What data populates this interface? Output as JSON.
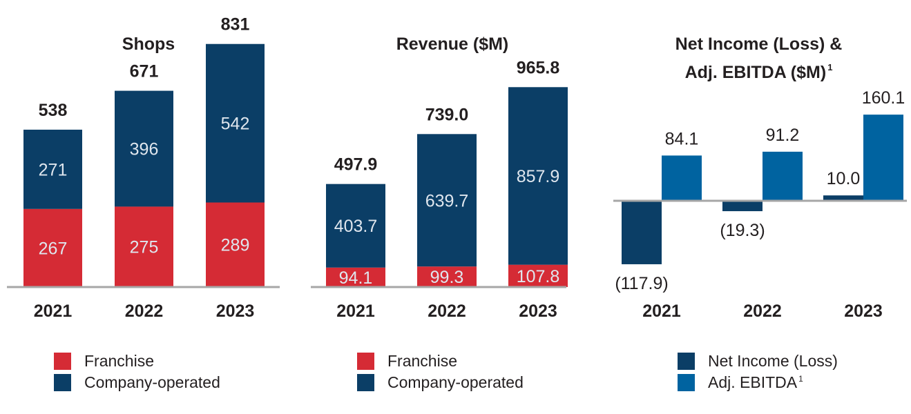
{
  "colors": {
    "franchise": "#d52b35",
    "company_operated": "#0b3e66",
    "net_income": "#0b3e66",
    "adj_ebitda": "#0063a0",
    "axis": "#a6a6a6",
    "text": "#231f20"
  },
  "chart_data": [
    {
      "type": "bar",
      "stacked": true,
      "title": "Shops",
      "categories": [
        "2021",
        "2022",
        "2023"
      ],
      "series": [
        {
          "name": "Franchise",
          "values": [
            267,
            275,
            289
          ],
          "labels": [
            "267",
            "275",
            "289"
          ]
        },
        {
          "name": "Company-operated",
          "values": [
            271,
            396,
            542
          ],
          "labels": [
            "271",
            "396",
            "542"
          ]
        }
      ],
      "totals": [
        "538",
        "671",
        "831"
      ],
      "ylim": [
        0,
        920
      ],
      "legend": "bottom"
    },
    {
      "type": "bar",
      "stacked": true,
      "title": "Revenue ($M)",
      "categories": [
        "2021",
        "2022",
        "2023"
      ],
      "series": [
        {
          "name": "Franchise",
          "values": [
            94.1,
            99.3,
            107.8
          ],
          "labels": [
            "94.1",
            "99.3",
            "107.8"
          ]
        },
        {
          "name": "Company-operated",
          "values": [
            403.7,
            639.7,
            857.9
          ],
          "labels": [
            "403.7",
            "639.7",
            "857.9"
          ]
        }
      ],
      "totals": [
        "497.9",
        "739.0",
        "965.8"
      ],
      "ylim": [
        0,
        1300
      ],
      "legend": "bottom"
    },
    {
      "type": "bar",
      "stacked": false,
      "title": "Net Income  (Loss) & Adj. EBITDA ($M)",
      "title_lines": [
        "Net Income  (Loss) &",
        "Adj. EBITDA ($M)"
      ],
      "title_footnote": "1",
      "categories": [
        "2021",
        "2022",
        "2023"
      ],
      "series": [
        {
          "name": "Net Income (Loss)",
          "values": [
            -117.9,
            -19.3,
            10.0
          ],
          "labels": [
            "(117.9)",
            "(19.3)",
            "10.0"
          ]
        },
        {
          "name": "Adj. EBITDA",
          "footnote": "1",
          "values": [
            84.1,
            91.2,
            160.1
          ],
          "labels": [
            "84.1",
            "91.2",
            "160.1"
          ]
        }
      ],
      "ylim": [
        -135,
        190
      ],
      "legend": "bottom"
    }
  ]
}
